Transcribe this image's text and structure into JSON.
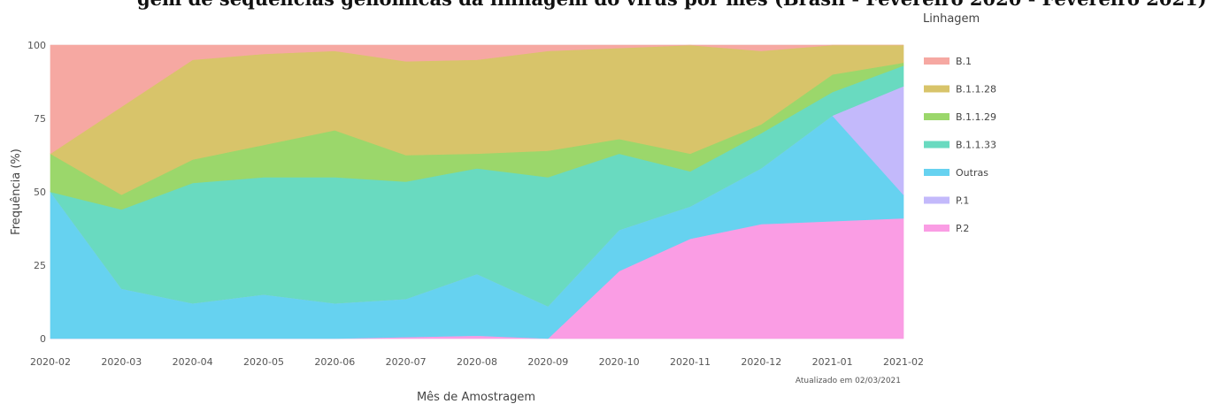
{
  "title": "gem de sequências genômicas da linhagem do vírus por mês (Brasil - Fevereiro 2020 - Fevereiro 2021)",
  "chart_data": {
    "type": "area",
    "stacked": true,
    "x": [
      "2020-02",
      "2020-03",
      "2020-04",
      "2020-05",
      "2020-06",
      "2020-07",
      "2020-08",
      "2020-09",
      "2020-10",
      "2020-11",
      "2020-12",
      "2021-01",
      "2021-02"
    ],
    "xlabel": "Mês de Amostragem",
    "ylabel": "Frequência (%)",
    "ylim": [
      0,
      100
    ],
    "yticks": [
      "0",
      "25",
      "50",
      "75",
      "100"
    ],
    "legend_title": "Linhagem",
    "legend_position": "right",
    "grid": true,
    "footnote": "Atualizado em 02/03/2021",
    "series": [
      {
        "name": "P.2",
        "color": "#fa9de4",
        "values": [
          0,
          0,
          0,
          0,
          0,
          0.5,
          1,
          0,
          23,
          34,
          39,
          40,
          41
        ]
      },
      {
        "name": "Outras",
        "color": "#66d2f0",
        "values": [
          50,
          17,
          12,
          15,
          12,
          13,
          21,
          11,
          14,
          11,
          19,
          36,
          8
        ]
      },
      {
        "name": "P.1",
        "color": "#c3b9fb",
        "values": [
          0,
          0,
          0,
          0,
          0,
          0,
          0,
          0,
          0,
          0,
          0,
          0,
          37
        ]
      },
      {
        "name": "B.1.1.33",
        "color": "#69dac0",
        "values": [
          0,
          27,
          41,
          40,
          43,
          40,
          36,
          44,
          26,
          12,
          12,
          8,
          7
        ]
      },
      {
        "name": "B.1.1.29",
        "color": "#9bd76b",
        "values": [
          13,
          5,
          8,
          11,
          16,
          9,
          5,
          9,
          5,
          6,
          3,
          6,
          1
        ]
      },
      {
        "name": "B.1.1.28",
        "color": "#d8c46a",
        "values": [
          0,
          30,
          34,
          31,
          27,
          32,
          32,
          34,
          31,
          37,
          25,
          10,
          6
        ]
      },
      {
        "name": "B.1",
        "color": "#f6a8a2",
        "values": [
          37,
          21,
          5,
          3,
          2,
          5.5,
          5,
          2,
          1,
          0,
          2,
          0,
          0
        ]
      }
    ],
    "legend_order": [
      "B.1",
      "B.1.1.28",
      "B.1.1.29",
      "B.1.1.33",
      "Outras",
      "P.1",
      "P.2"
    ]
  }
}
